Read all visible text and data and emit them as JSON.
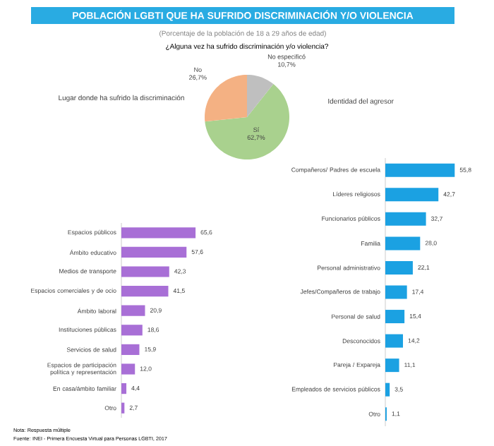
{
  "chart_data": [
    {
      "type": "other",
      "title": "POBLACIÓN LGBTI QUE HA SUFRIDO DISCRIMINACIÓN Y/O VIOLENCIA",
      "subtitle": "(Porcentaje de la población de 18 a 29 años de edad)",
      "annotations": [
        "Nota: Respuesta múltiple",
        "Fuente: INEI - Primera Encuesta Virtual para Personas LGBTI, 2017"
      ]
    },
    {
      "type": "pie",
      "title": "¿Alguna vez ha sufrido discriminación y/o violencia?",
      "categories": [
        "Sí",
        "No",
        "No especificó"
      ],
      "values": [
        62.7,
        26.7,
        10.7
      ],
      "colors": [
        "#a9d18e",
        "#f4b183",
        "#bfbfbf"
      ],
      "value_labels": [
        "62,7%",
        "26,7%",
        "10,7%"
      ]
    },
    {
      "type": "bar",
      "orientation": "horizontal",
      "title": "Lugar donde ha sufrido la discriminación",
      "color": "#a86fd6",
      "categories": [
        "Espacios públicos",
        "Ámbito educativo",
        "Medios de transporte",
        "Espacios comerciales y de ocio",
        "Ámbito laboral",
        "Instituciones públicas",
        "Servicios de salud",
        "Espacios de participación política y representación",
        "En casa/ámbito familiar",
        "Otro"
      ],
      "values": [
        65.6,
        57.6,
        42.3,
        41.5,
        20.9,
        18.6,
        15.9,
        12.0,
        4.4,
        2.7
      ],
      "value_labels": [
        "65,6",
        "57,6",
        "42,3",
        "41,5",
        "20,9",
        "18,6",
        "15,9",
        "12,0",
        "4,4",
        "2,7"
      ]
    },
    {
      "type": "bar",
      "orientation": "horizontal",
      "title": "Identidad del agresor",
      "color": "#1ba1e2",
      "categories": [
        "Compañeros/ Padres de escuela",
        "Líderes religiosos",
        "Funcionarios públicos",
        "Familia",
        "Personal administrativo",
        "Jefes/Compañeros de trabajo",
        "Personal de salud",
        "Desconocidos",
        "Pareja / Expareja",
        "Empleados de servicios públicos",
        "Otro"
      ],
      "values": [
        55.8,
        42.7,
        32.7,
        28.0,
        22.1,
        17.4,
        15.4,
        14.2,
        11.1,
        3.5,
        1.1
      ],
      "value_labels": [
        "55,8",
        "42,7",
        "32,7",
        "28,0",
        "22,1",
        "17,4",
        "15,4",
        "14,2",
        "11,1",
        "3,5",
        "1,1"
      ]
    }
  ]
}
